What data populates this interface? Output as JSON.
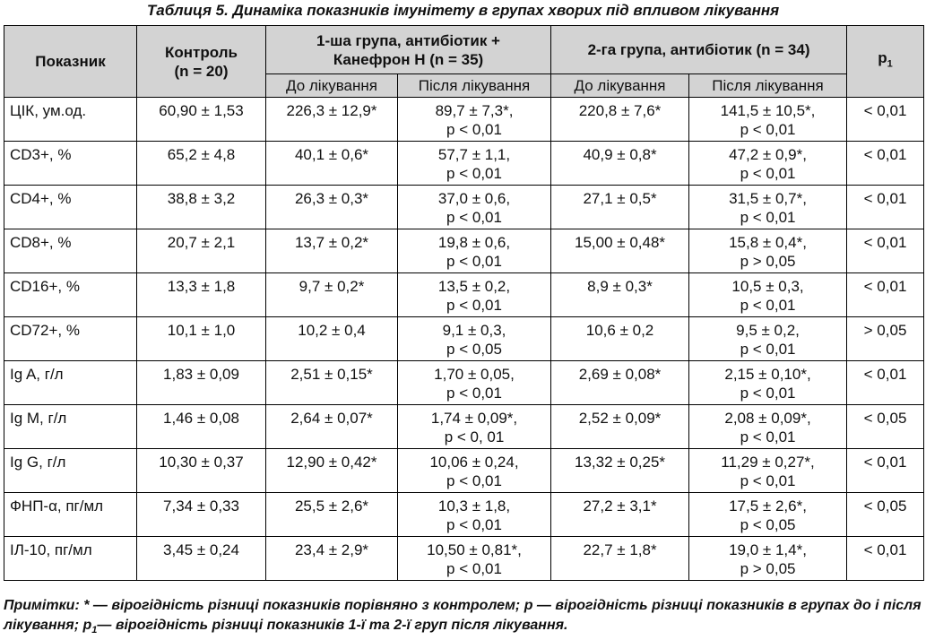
{
  "title": "Таблиця 5. Динаміка показників імунітету в групах хворих під впливом лікування",
  "table": {
    "header": {
      "indicator": "Показник",
      "control": [
        "Контроль",
        "(n = 20)"
      ],
      "group1": [
        "1-ша група, антибіотик +",
        "Канефрон Н (n = 35)"
      ],
      "group2": "2-га група, антибіотик (n = 34)",
      "p1": {
        "text": "p",
        "sub": "1"
      },
      "sub": [
        "До лікування",
        "Після лікування",
        "До лікування",
        "Після лікування"
      ]
    },
    "rows": [
      [
        "ЦІК, ум.од.",
        "60,90 ± 1,53",
        "226,3 ± 12,9*",
        [
          "89,7 ± 7,3*,",
          "p < 0,01"
        ],
        "220,8 ± 7,6*",
        [
          "141,5 ± 10,5*,",
          "p < 0,01"
        ],
        "< 0,01"
      ],
      [
        "CD3+, %",
        "65,2 ± 4,8",
        "40,1 ± 0,6*",
        [
          "57,7 ± 1,1,",
          "p < 0,01"
        ],
        "40,9 ± 0,8*",
        [
          "47,2 ± 0,9*,",
          "p < 0,01"
        ],
        "< 0,01"
      ],
      [
        "CD4+, %",
        "38,8 ± 3,2",
        "26,3 ± 0,3*",
        [
          "37,0 ± 0,6,",
          "p < 0,01"
        ],
        "27,1 ± 0,5*",
        [
          "31,5 ± 0,7*,",
          "p < 0,01"
        ],
        "< 0,01"
      ],
      [
        "CD8+, %",
        "20,7 ± 2,1",
        "13,7 ± 0,2*",
        [
          "19,8 ± 0,6,",
          "p < 0,01"
        ],
        "15,00 ± 0,48*",
        [
          "15,8 ± 0,4*,",
          "p > 0,05"
        ],
        "< 0,01"
      ],
      [
        "CD16+, %",
        "13,3 ± 1,8",
        "9,7 ± 0,2*",
        [
          "13,5 ± 0,2,",
          "p < 0,01"
        ],
        "8,9 ± 0,3*",
        [
          "10,5 ± 0,3,",
          "p < 0,01"
        ],
        "< 0,01"
      ],
      [
        "CD72+, %",
        "10,1 ± 1,0",
        "10,2 ± 0,4",
        [
          "9,1 ± 0,3,",
          "p < 0,05"
        ],
        "10,6 ± 0,2",
        [
          "9,5 ± 0,2,",
          "p < 0,01"
        ],
        "> 0,05"
      ],
      [
        "Ig A, г/л",
        "1,83 ± 0,09",
        "2,51 ± 0,15*",
        [
          "1,70 ± 0,05,",
          "p < 0,01"
        ],
        "2,69 ± 0,08*",
        [
          "2,15 ± 0,10*,",
          "p < 0,01"
        ],
        "< 0,01"
      ],
      [
        "Ig M, г/л",
        "1,46 ± 0,08",
        "2,64 ± 0,07*",
        [
          "1,74 ± 0,09*,",
          "p < 0, 01"
        ],
        "2,52 ± 0,09*",
        [
          "2,08 ± 0,09*,",
          "p < 0,01"
        ],
        "< 0,05"
      ],
      [
        "Ig G, г/л",
        "10,30 ± 0,37",
        "12,90 ± 0,42*",
        [
          "10,06 ± 0,24,",
          "p < 0,01"
        ],
        "13,32 ± 0,25*",
        [
          "11,29 ± 0,27*,",
          "p < 0,01"
        ],
        "< 0,01"
      ],
      [
        "ФНП-α, пг/мл",
        "7,34 ± 0,33",
        "25,5 ± 2,6*",
        [
          "10,3 ± 1,8,",
          "p < 0,01"
        ],
        "27,2 ± 3,1*",
        [
          "17,5 ± 2,6*,",
          "p < 0,05"
        ],
        "< 0,05"
      ],
      [
        "ІЛ-10, пг/мл",
        "3,45 ± 0,24",
        "23,4 ± 2,9*",
        [
          "10,50 ± 0,81*,",
          "p < 0,01"
        ],
        "22,7 ± 1,8*",
        [
          "19,0 ± 1,4*,",
          "p > 0,05"
        ],
        "< 0,01"
      ]
    ]
  },
  "notes": [
    "Примітки: * — вірогідність різниці показників порівняно з контролем; p — вірогідність різниці показників в групах до і після лікування; p",
    "1",
    "— вірогідність різниці показників 1-ї та 2-ї груп після лікування."
  ]
}
